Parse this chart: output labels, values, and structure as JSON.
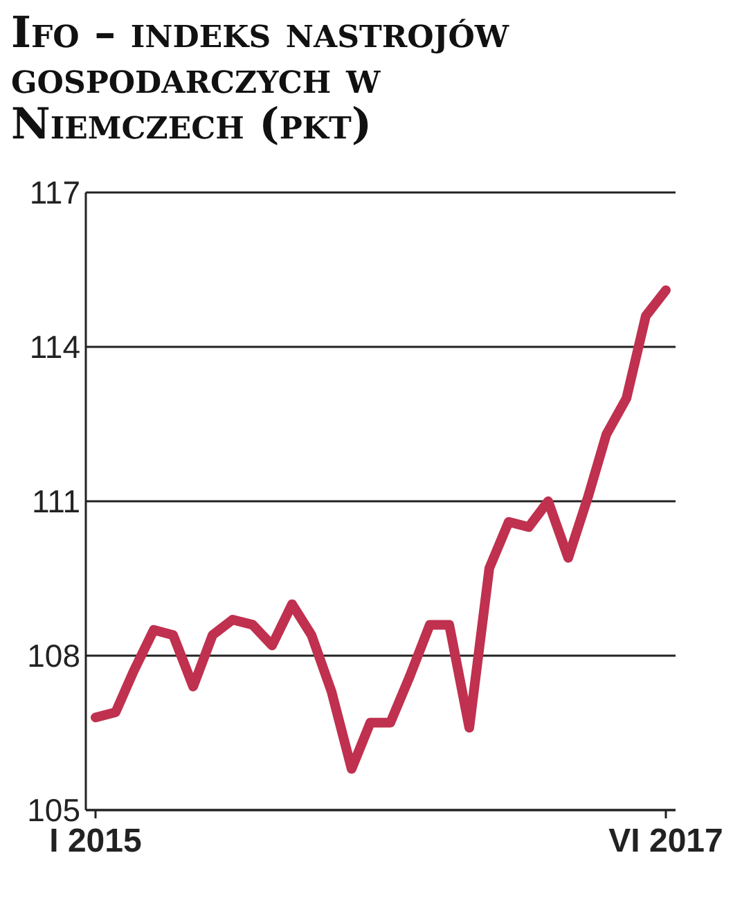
{
  "chart_data": {
    "type": "line",
    "title": "Ifo – indeks nastrojów gospodarczych w Niemczech (pkt)",
    "x": [
      "2015-01",
      "2015-02",
      "2015-03",
      "2015-04",
      "2015-05",
      "2015-06",
      "2015-07",
      "2015-08",
      "2015-09",
      "2015-10",
      "2015-11",
      "2015-12",
      "2016-01",
      "2016-02",
      "2016-03",
      "2016-04",
      "2016-05",
      "2016-06",
      "2016-07",
      "2016-08",
      "2016-09",
      "2016-10",
      "2016-11",
      "2016-12",
      "2017-01",
      "2017-02",
      "2017-03",
      "2017-04",
      "2017-05",
      "2017-06"
    ],
    "series": [
      {
        "color": "#c0304f",
        "values": [
          106.8,
          106.9,
          107.7,
          108.5,
          108.4,
          107.4,
          108.4,
          108.7,
          108.6,
          108.2,
          109.0,
          108.4,
          107.3,
          105.8,
          106.7,
          106.7,
          107.6,
          108.6,
          108.6,
          106.6,
          109.7,
          110.6,
          110.5,
          111.0,
          109.9,
          111.1,
          112.3,
          113.0,
          114.6,
          115.1
        ]
      }
    ],
    "xlim": [
      "2014-12-17",
      "2017-06-16"
    ],
    "xticks": [
      {
        "value": "2015-01",
        "label": "I 2015"
      },
      {
        "value": "2017-06",
        "label": "VI 2017"
      }
    ],
    "ylim": [
      105,
      117
    ],
    "yticks": [
      105,
      108,
      111,
      114,
      117
    ],
    "grid": "y",
    "marker": "none",
    "line_style": "solid"
  }
}
